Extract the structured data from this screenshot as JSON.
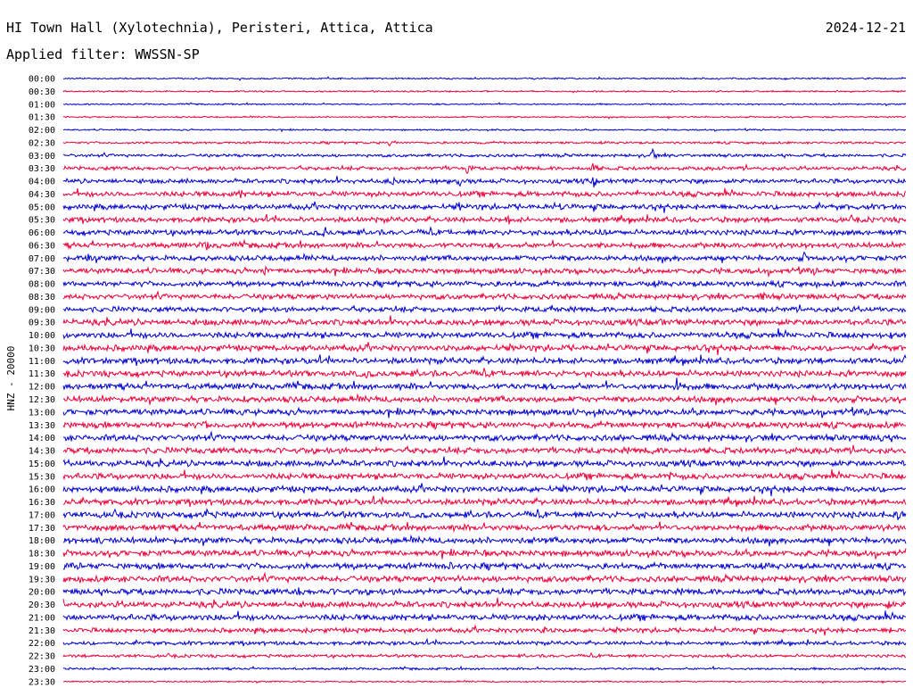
{
  "header": {
    "station": "HI Town Hall (Xylotechnia), Peristeri, Attica, Attica",
    "date": "2024-12-21",
    "filter": "Applied filter: WWSSN-SP"
  },
  "chart_data": {
    "type": "line",
    "title": "HI Town Hall (Xylotechnia), Peristeri, Attica, Attica",
    "ylabel": "HNZ - 20000",
    "row_labels": [
      "00:00",
      "00:30",
      "01:00",
      "01:30",
      "02:00",
      "02:30",
      "03:00",
      "03:30",
      "04:00",
      "04:30",
      "05:00",
      "05:30",
      "06:00",
      "06:30",
      "07:00",
      "07:30",
      "08:00",
      "08:30",
      "09:00",
      "09:30",
      "10:00",
      "10:30",
      "11:00",
      "11:30",
      "12:00",
      "12:30",
      "13:00",
      "13:30",
      "14:00",
      "14:30",
      "15:00",
      "15:30",
      "16:00",
      "16:30",
      "17:00",
      "17:30",
      "18:00",
      "18:30",
      "19:00",
      "19:30",
      "20:00",
      "20:30",
      "21:00",
      "21:30",
      "22:00",
      "22:30",
      "23:00",
      "23:30"
    ],
    "colors": [
      "#0000cc",
      "#e8003a"
    ],
    "row_noise": [
      1,
      1,
      1,
      1,
      1,
      1.5,
      2,
      2.5,
      3,
      3.5,
      3.5,
      3.5,
      3.5,
      3.5,
      3.5,
      3.5,
      3.5,
      3.5,
      3.5,
      4,
      4,
      4,
      4,
      4,
      4,
      4,
      4,
      4,
      4,
      4,
      4,
      4,
      4,
      4,
      4,
      4,
      4,
      4,
      4,
      4,
      4,
      4,
      4,
      3,
      2.5,
      2,
      1.5,
      1
    ],
    "events": [
      {
        "row": 5,
        "t": 0.39,
        "amp": 8
      },
      {
        "row": 6,
        "t": 0.7,
        "amp": 9
      },
      {
        "row": 7,
        "t": 0.48,
        "amp": 7
      },
      {
        "row": 7,
        "t": 0.63,
        "amp": 9
      },
      {
        "row": 8,
        "t": 0.39,
        "amp": 8
      },
      {
        "row": 8,
        "t": 0.47,
        "amp": 7
      },
      {
        "row": 8,
        "t": 0.63,
        "amp": 8
      },
      {
        "row": 9,
        "t": 0.21,
        "amp": 7
      },
      {
        "row": 9,
        "t": 0.68,
        "amp": 7
      },
      {
        "row": 10,
        "t": 0.47,
        "amp": 6
      },
      {
        "row": 10,
        "t": 0.59,
        "amp": 7
      },
      {
        "row": 11,
        "t": 0.53,
        "amp": 7
      },
      {
        "row": 12,
        "t": 0.31,
        "amp": 9
      },
      {
        "row": 12,
        "t": 0.64,
        "amp": 8
      },
      {
        "row": 13,
        "t": 0.17,
        "amp": 7
      },
      {
        "row": 13,
        "t": 0.64,
        "amp": 6
      },
      {
        "row": 14,
        "t": 0.03,
        "amp": 7
      },
      {
        "row": 14,
        "t": 0.88,
        "amp": 8
      },
      {
        "row": 15,
        "t": 0.24,
        "amp": 7
      },
      {
        "row": 15,
        "t": 0.89,
        "amp": 7
      },
      {
        "row": 16,
        "t": 0.48,
        "amp": 6
      },
      {
        "row": 17,
        "t": 0.83,
        "amp": 7
      },
      {
        "row": 18,
        "t": 0.58,
        "amp": 6
      },
      {
        "row": 19,
        "t": 0.71,
        "amp": 7
      },
      {
        "row": 21,
        "t": 0.76,
        "amp": 6
      },
      {
        "row": 23,
        "t": 0.36,
        "amp": 6
      },
      {
        "row": 24,
        "t": 0.73,
        "amp": 17
      },
      {
        "row": 27,
        "t": 0.17,
        "amp": 6
      },
      {
        "row": 28,
        "t": 0.97,
        "amp": 7
      },
      {
        "row": 29,
        "t": 0.7,
        "amp": 6
      },
      {
        "row": 30,
        "t": 0.32,
        "amp": 6
      },
      {
        "row": 31,
        "t": 0.72,
        "amp": 6
      },
      {
        "row": 33,
        "t": 0.01,
        "amp": 5
      },
      {
        "row": 34,
        "t": 0.17,
        "amp": 7
      },
      {
        "row": 34,
        "t": 0.99,
        "amp": 7
      },
      {
        "row": 36,
        "t": 0.04,
        "amp": 7
      },
      {
        "row": 38,
        "t": 0.46,
        "amp": 6
      },
      {
        "row": 40,
        "t": 0.28,
        "amp": 7
      },
      {
        "row": 40,
        "t": 0.32,
        "amp": 6
      },
      {
        "row": 41,
        "t": 0.98,
        "amp": 7
      },
      {
        "row": 42,
        "t": 0.57,
        "amp": 6
      },
      {
        "row": 43,
        "t": 0.57,
        "amp": 6
      },
      {
        "row": 43,
        "t": 0.98,
        "amp": 6
      }
    ]
  }
}
